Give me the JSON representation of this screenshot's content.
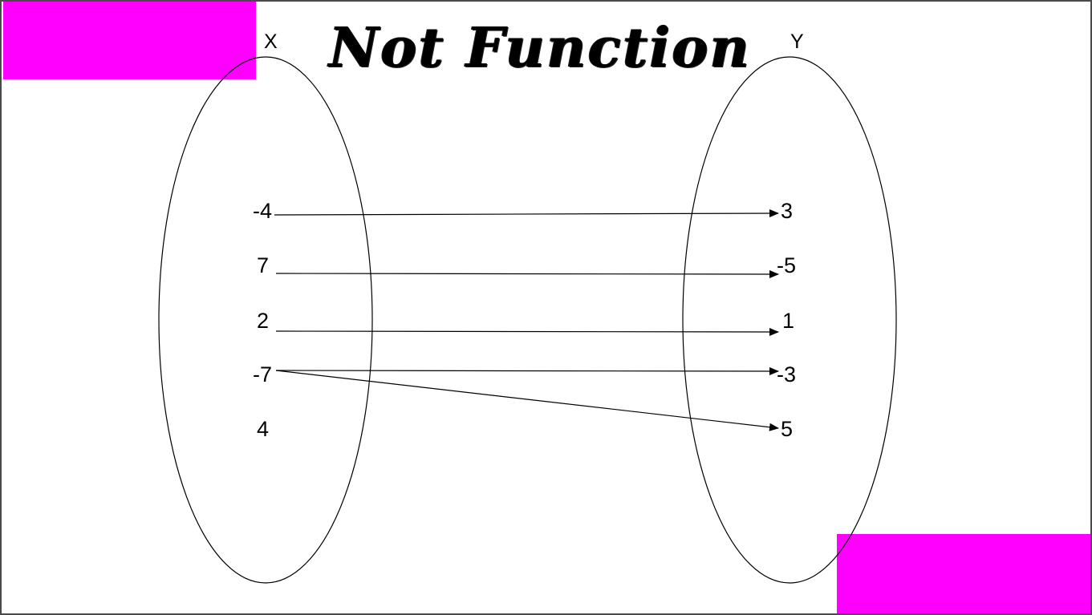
{
  "title": "Not Function",
  "accent_color": "#ff00ff",
  "domain": {
    "label": "X",
    "values": [
      "-4",
      "7",
      "2",
      "-7",
      "4"
    ]
  },
  "range": {
    "label": "Y",
    "values": [
      "3",
      "-5",
      "1",
      "-3",
      "5"
    ]
  },
  "mappings": [
    {
      "from": "-4",
      "to": "3"
    },
    {
      "from": "7",
      "to": "-5"
    },
    {
      "from": "2",
      "to": "1"
    },
    {
      "from": "-7",
      "to": "-3"
    },
    {
      "from": "-7",
      "to": "5"
    }
  ]
}
